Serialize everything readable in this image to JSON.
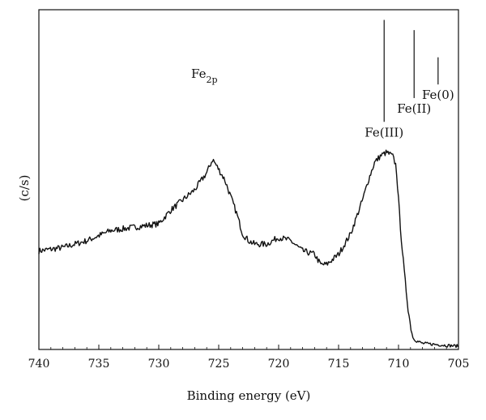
{
  "chart_data": {
    "type": "line",
    "title": "",
    "xlabel": "Binding energy (eV)",
    "ylabel": "(c/s)",
    "xlim": [
      740,
      705
    ],
    "ylim": [
      0,
      100
    ],
    "x_reversed": true,
    "xticks": [
      740,
      735,
      730,
      725,
      720,
      715,
      710,
      705
    ],
    "yticks_labeled": false,
    "grid": false,
    "legend": "none",
    "annotation_label": "Fe",
    "annotation_subscript": "2p",
    "reference_lines": [
      {
        "label": "Fe(III)",
        "x": 711.2,
        "y_top": 97,
        "y_bottom": 67
      },
      {
        "label": "Fe(II)",
        "x": 708.7,
        "y_top": 94,
        "y_bottom": 74
      },
      {
        "label": "Fe(0)",
        "x": 706.7,
        "y_top": 86,
        "y_bottom": 78
      }
    ],
    "series": [
      {
        "x": [
          740,
          738,
          736,
          734,
          732,
          730,
          729,
          728,
          727,
          726,
          725.5,
          725,
          724.5,
          724,
          723.5,
          723,
          722.5,
          722,
          721,
          720,
          719,
          718,
          717,
          716.5,
          716,
          715,
          714,
          713,
          712.5,
          712,
          711.5,
          711,
          710.5,
          710.2,
          710,
          709.8,
          709.5,
          709.2,
          709,
          708.8,
          708.5,
          708,
          707,
          706,
          705
        ],
        "y": [
          29,
          30,
          32,
          35,
          36,
          37,
          41,
          44,
          47,
          52,
          56,
          53,
          50,
          45,
          40,
          34,
          32,
          31,
          31,
          33,
          32,
          29,
          28,
          25,
          25,
          28,
          34,
          44,
          50,
          55,
          57,
          58,
          57,
          54,
          44,
          34,
          22,
          12,
          7,
          3.5,
          2.5,
          1.8,
          1.5,
          1.2,
          1.0
        ]
      }
    ]
  },
  "colors": {
    "line": "#111111",
    "frame": "#111111",
    "background": "#ffffff"
  }
}
